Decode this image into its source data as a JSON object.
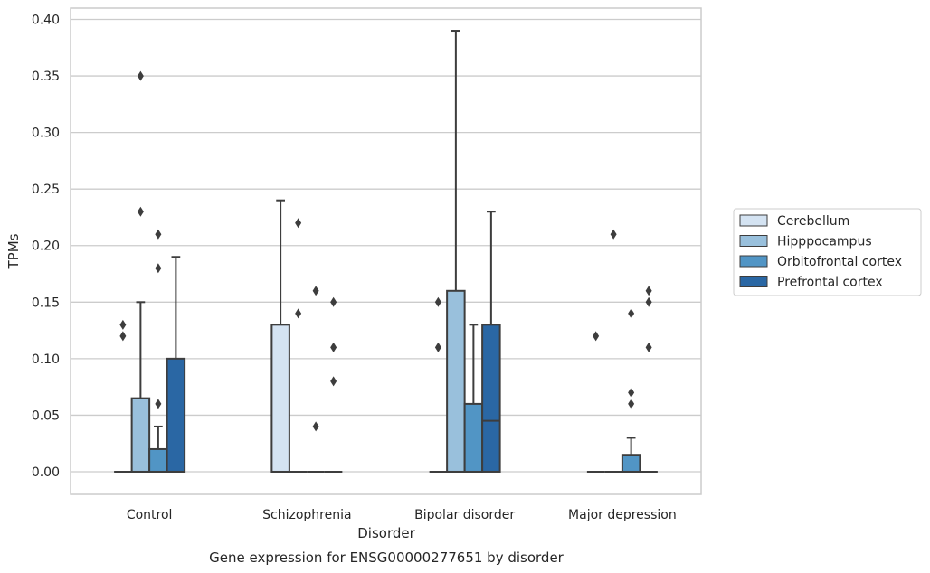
{
  "chart_data": {
    "type": "box",
    "xlabel": "Disorder",
    "ylabel": "TPMs",
    "caption": "Gene expression for ENSG00000277651 by disorder",
    "ylim": [
      -0.02,
      0.41
    ],
    "yticks": [
      "0.00",
      "0.05",
      "0.10",
      "0.15",
      "0.20",
      "0.25",
      "0.30",
      "0.35",
      "0.40"
    ],
    "grid": true,
    "legend_position": "right",
    "categories": [
      "Control",
      "Schizophrenia",
      "Bipolar disorder",
      "Major depression"
    ],
    "series": [
      {
        "name": "Cerebellum",
        "color": "#d4e3f2",
        "boxes": [
          {
            "q1": 0,
            "median": 0,
            "q3": 0,
            "whisker_low": 0,
            "whisker_high": 0,
            "outliers": [
              0.12,
              0.13
            ]
          },
          {
            "q1": 0,
            "median": 0,
            "q3": 0.13,
            "whisker_low": 0,
            "whisker_high": 0.24,
            "outliers": []
          },
          {
            "q1": 0,
            "median": 0,
            "q3": 0,
            "whisker_low": 0,
            "whisker_high": 0,
            "outliers": [
              0.11,
              0.15
            ]
          },
          {
            "q1": 0,
            "median": 0,
            "q3": 0,
            "whisker_low": 0,
            "whisker_high": 0,
            "outliers": [
              0.12
            ]
          }
        ]
      },
      {
        "name": "Hipppocampus",
        "color": "#99c0dc",
        "boxes": [
          {
            "q1": 0,
            "median": 0,
            "q3": 0.065,
            "whisker_low": 0,
            "whisker_high": 0.15,
            "outliers": [
              0.23,
              0.35
            ]
          },
          {
            "q1": 0,
            "median": 0,
            "q3": 0,
            "whisker_low": 0,
            "whisker_high": 0,
            "outliers": [
              0.14,
              0.22
            ]
          },
          {
            "q1": 0,
            "median": 0,
            "q3": 0.16,
            "whisker_low": 0,
            "whisker_high": 0.39,
            "outliers": []
          },
          {
            "q1": 0,
            "median": 0,
            "q3": 0,
            "whisker_low": 0,
            "whisker_high": 0,
            "outliers": [
              0.21
            ]
          }
        ]
      },
      {
        "name": "Orbitofrontal cortex",
        "color": "#5195c5",
        "boxes": [
          {
            "q1": 0,
            "median": 0,
            "q3": 0.02,
            "whisker_low": 0,
            "whisker_high": 0.04,
            "outliers": [
              0.06,
              0.18,
              0.21
            ]
          },
          {
            "q1": 0,
            "median": 0,
            "q3": 0,
            "whisker_low": 0,
            "whisker_high": 0,
            "outliers": [
              0.04,
              0.16
            ]
          },
          {
            "q1": 0,
            "median": 0,
            "q3": 0.06,
            "whisker_low": 0,
            "whisker_high": 0.13,
            "outliers": []
          },
          {
            "q1": 0,
            "median": 0,
            "q3": 0.015,
            "whisker_low": 0,
            "whisker_high": 0.03,
            "outliers": [
              0.06,
              0.07,
              0.14
            ]
          }
        ]
      },
      {
        "name": "Prefrontal cortex",
        "color": "#2a67a4",
        "boxes": [
          {
            "q1": 0,
            "median": 0,
            "q3": 0.1,
            "whisker_low": 0,
            "whisker_high": 0.19,
            "outliers": []
          },
          {
            "q1": 0,
            "median": 0,
            "q3": 0,
            "whisker_low": 0,
            "whisker_high": 0,
            "outliers": [
              0.08,
              0.11,
              0.15
            ]
          },
          {
            "q1": 0,
            "median": 0.045,
            "q3": 0.13,
            "whisker_low": 0,
            "whisker_high": 0.23,
            "outliers": []
          },
          {
            "q1": 0,
            "median": 0,
            "q3": 0,
            "whisker_low": 0,
            "whisker_high": 0,
            "outliers": [
              0.11,
              0.15,
              0.16
            ]
          }
        ]
      }
    ]
  }
}
